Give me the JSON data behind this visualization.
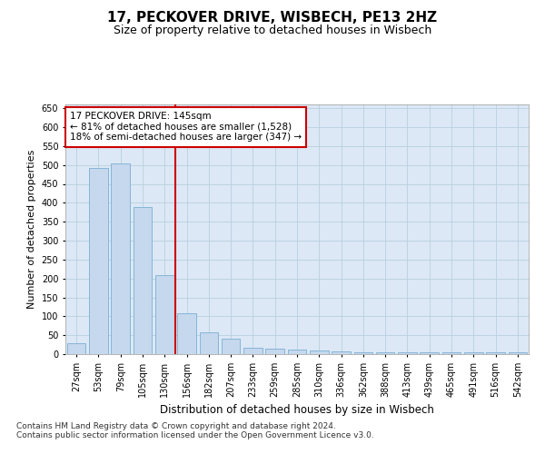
{
  "title": "17, PECKOVER DRIVE, WISBECH, PE13 2HZ",
  "subtitle": "Size of property relative to detached houses in Wisbech",
  "xlabel": "Distribution of detached houses by size in Wisbech",
  "ylabel": "Number of detached properties",
  "categories": [
    "27sqm",
    "53sqm",
    "79sqm",
    "105sqm",
    "130sqm",
    "156sqm",
    "182sqm",
    "207sqm",
    "233sqm",
    "259sqm",
    "285sqm",
    "310sqm",
    "336sqm",
    "362sqm",
    "388sqm",
    "413sqm",
    "439sqm",
    "465sqm",
    "491sqm",
    "516sqm",
    "542sqm"
  ],
  "values": [
    30,
    492,
    505,
    390,
    210,
    107,
    58,
    40,
    18,
    15,
    12,
    10,
    8,
    5,
    5,
    4,
    4,
    4,
    5,
    4,
    5
  ],
  "bar_color": "#c5d8ed",
  "bar_edge_color": "#7bafd4",
  "grid_color": "#b8cfe0",
  "background_color": "#dce8f5",
  "annotation_box_bg": "#ffffff",
  "annotation_box_edge": "#cc0000",
  "annotation_line1": "17 PECKOVER DRIVE: 145sqm",
  "annotation_line2": "← 81% of detached houses are smaller (1,528)",
  "annotation_line3": "18% of semi-detached houses are larger (347) →",
  "redline_x": 4.5,
  "ylim": [
    0,
    660
  ],
  "yticks": [
    0,
    50,
    100,
    150,
    200,
    250,
    300,
    350,
    400,
    450,
    500,
    550,
    600,
    650
  ],
  "footnote1": "Contains HM Land Registry data © Crown copyright and database right 2024.",
  "footnote2": "Contains public sector information licensed under the Open Government Licence v3.0.",
  "title_fontsize": 11,
  "subtitle_fontsize": 9,
  "xlabel_fontsize": 8.5,
  "ylabel_fontsize": 8,
  "tick_fontsize": 7,
  "annotation_fontsize": 7.5,
  "footnote_fontsize": 6.5
}
